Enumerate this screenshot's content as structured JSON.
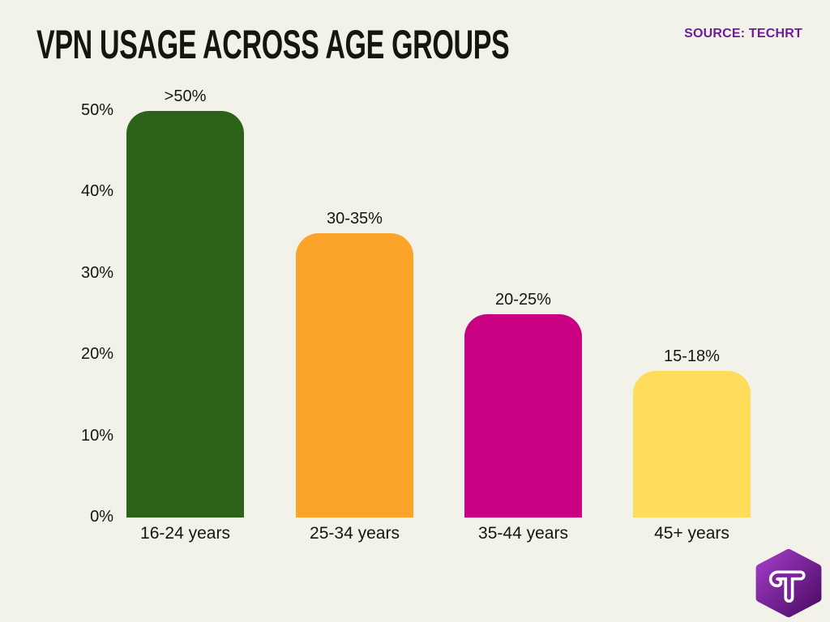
{
  "page": {
    "background_color": "#f2f2eb"
  },
  "header": {
    "title": "VPN USAGE ACROSS AGE GROUPS",
    "title_color": "#17150f",
    "source_label": "SOURCE: TECHRT",
    "source_color": "#6e1d96"
  },
  "chart_data": {
    "type": "bar",
    "title": "VPN USAGE ACROSS AGE GROUPS",
    "categories": [
      "16-24 years",
      "25-34 years",
      "35-44 years",
      "45+ years"
    ],
    "values": [
      50,
      35,
      25,
      18
    ],
    "value_labels": [
      ">50%",
      "30-35%",
      "20-25%",
      "15-18%"
    ],
    "bar_colors": [
      "#2d6318",
      "#fca32a",
      "#cb0183",
      "#fedd5b"
    ],
    "xlabel": "",
    "ylabel": "",
    "y_ticks": [
      {
        "value": 50,
        "label": "50%"
      },
      {
        "value": 40,
        "label": "40%"
      },
      {
        "value": 30,
        "label": "30%"
      },
      {
        "value": 20,
        "label": "20%"
      },
      {
        "value": 10,
        "label": "10%"
      },
      {
        "value": 0,
        "label": "0%"
      }
    ],
    "ylim": [
      0,
      52
    ],
    "grid": false,
    "legend_position": "none"
  },
  "logo": {
    "letter": "T",
    "shape": "hexagon",
    "gradient": [
      "#a13cc6",
      "#4c0b66"
    ],
    "letter_color": "#ffffff"
  }
}
